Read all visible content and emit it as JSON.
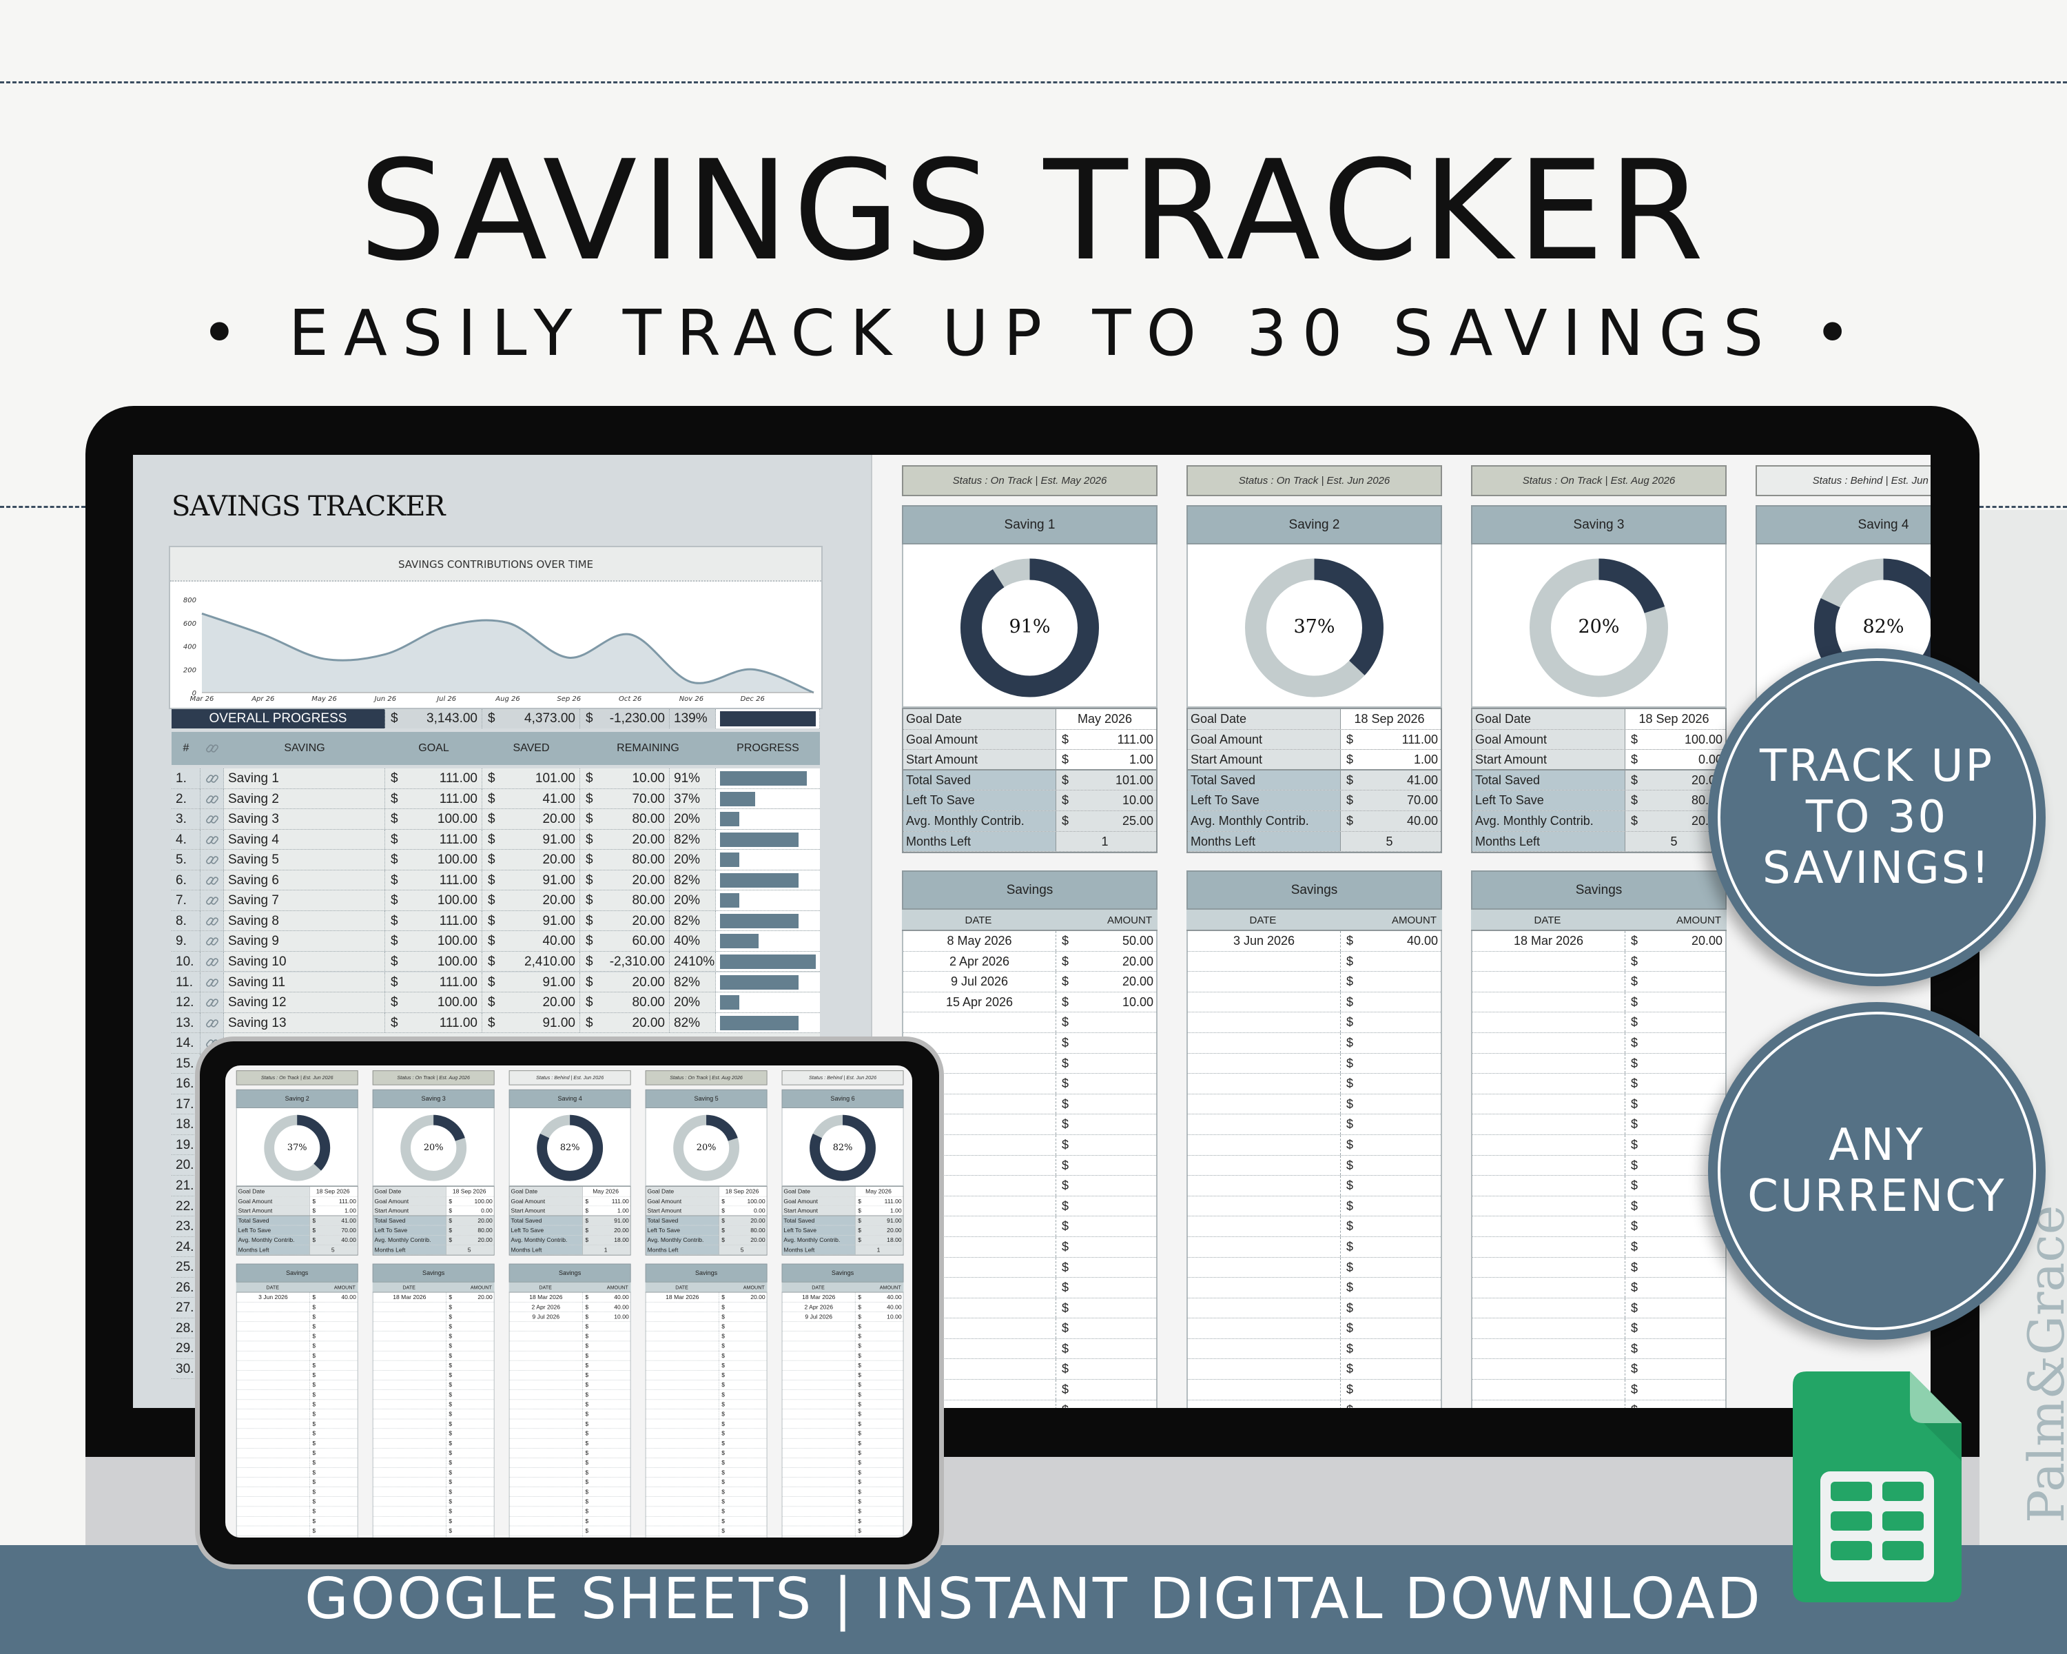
{
  "header": {
    "title": "SAVINGS TRACKER",
    "subtitle": "• EASILY TRACK UP TO 30 SAVINGS •"
  },
  "sheet": {
    "title": "SAVINGS TRACKER",
    "overall": {
      "label": "OVERALL PROGRESS",
      "currency": "$",
      "goal": "3,143.00",
      "saved": "4,373.00",
      "remaining": "-1,230.00",
      "percent": "139%",
      "progress": 1
    },
    "columns": {
      "num": "#",
      "saving": "SAVING",
      "goal": "GOAL",
      "saved": "SAVED",
      "remaining": "REMAINING",
      "progress": "PROGRESS"
    },
    "currency": "$",
    "rows": [
      {
        "num": "1.",
        "name": "Saving 1",
        "goal": "111.00",
        "saved": "101.00",
        "remaining": "10.00",
        "percent": "91%",
        "progress": 0.91
      },
      {
        "num": "2.",
        "name": "Saving 2",
        "goal": "111.00",
        "saved": "41.00",
        "remaining": "70.00",
        "percent": "37%",
        "progress": 0.37
      },
      {
        "num": "3.",
        "name": "Saving 3",
        "goal": "100.00",
        "saved": "20.00",
        "remaining": "80.00",
        "percent": "20%",
        "progress": 0.2
      },
      {
        "num": "4.",
        "name": "Saving 4",
        "goal": "111.00",
        "saved": "91.00",
        "remaining": "20.00",
        "percent": "82%",
        "progress": 0.82
      },
      {
        "num": "5.",
        "name": "Saving 5",
        "goal": "100.00",
        "saved": "20.00",
        "remaining": "80.00",
        "percent": "20%",
        "progress": 0.2
      },
      {
        "num": "6.",
        "name": "Saving 6",
        "goal": "111.00",
        "saved": "91.00",
        "remaining": "20.00",
        "percent": "82%",
        "progress": 0.82
      },
      {
        "num": "7.",
        "name": "Saving 7",
        "goal": "100.00",
        "saved": "20.00",
        "remaining": "80.00",
        "percent": "20%",
        "progress": 0.2
      },
      {
        "num": "8.",
        "name": "Saving 8",
        "goal": "111.00",
        "saved": "91.00",
        "remaining": "20.00",
        "percent": "82%",
        "progress": 0.82
      },
      {
        "num": "9.",
        "name": "Saving 9",
        "goal": "100.00",
        "saved": "40.00",
        "remaining": "60.00",
        "percent": "40%",
        "progress": 0.4
      },
      {
        "num": "10.",
        "name": "Saving 10",
        "goal": "100.00",
        "saved": "2,410.00",
        "remaining": "-2,310.00",
        "percent": "2410%",
        "progress": 1
      },
      {
        "num": "11.",
        "name": "Saving 11",
        "goal": "111.00",
        "saved": "91.00",
        "remaining": "20.00",
        "percent": "82%",
        "progress": 0.82
      },
      {
        "num": "12.",
        "name": "Saving 12",
        "goal": "100.00",
        "saved": "20.00",
        "remaining": "80.00",
        "percent": "20%",
        "progress": 0.2
      },
      {
        "num": "13.",
        "name": "Saving 13",
        "goal": "111.00",
        "saved": "91.00",
        "remaining": "20.00",
        "percent": "82%",
        "progress": 0.82
      }
    ],
    "empty_rows": [
      "14.",
      "15.",
      "16.",
      "17.",
      "18.",
      "19.",
      "20.",
      "21.",
      "22.",
      "23.",
      "24.",
      "25.",
      "26.",
      "27.",
      "28.",
      "29.",
      "30."
    ]
  },
  "chart_data": {
    "type": "area",
    "title": "SAVINGS CONTRIBUTIONS OVER TIME",
    "x": [
      "2026-03",
      "2026-04",
      "2026-05",
      "2026-06",
      "2026-07",
      "2026-08",
      "2026-09",
      "2026-10",
      "2026-11",
      "2026-12",
      "2027-01"
    ],
    "values": [
      680,
      500,
      290,
      330,
      570,
      600,
      300,
      500,
      90,
      200,
      0
    ],
    "x_tick_labels": [
      "Mar 26",
      "Apr 26",
      "May 26",
      "Jun 26",
      "Jul 26",
      "Aug 26",
      "Sep 26",
      "Oct 26",
      "Nov 26",
      "Dec 26"
    ],
    "y_ticks": [
      "0",
      "200",
      "400",
      "600",
      "800"
    ],
    "ylim": [
      0,
      800
    ],
    "smooth": true,
    "grid": false,
    "xlabel": "",
    "ylabel": "",
    "fill_color": "#d8e0e4",
    "line_color": "#7e98a6"
  },
  "card_labels": {
    "goal_date": "Goal Date",
    "goal_amount": "Goal Amount",
    "start_amount": "Start Amount",
    "total_saved": "Total Saved",
    "left_to_save": "Left To Save",
    "avg_monthly": "Avg. Monthly Contrib.",
    "months_left": "Months Left",
    "savings": "Savings",
    "date": "DATE",
    "amount": "AMOUNT",
    "currency": "$"
  },
  "cards": [
    {
      "status": "Status : On Track  |  Est. May 2026",
      "on_track": true,
      "name": "Saving 1",
      "percent": "91%",
      "progress": 0.91,
      "goal_date": "May 2026",
      "goal_amount": "111.00",
      "start_amount": "1.00",
      "total_saved": "101.00",
      "left_to_save": "10.00",
      "avg_monthly": "25.00",
      "months_left": "1",
      "entries": [
        {
          "date": "8 May 2026",
          "amount": "50.00"
        },
        {
          "date": "2 Apr 2026",
          "amount": "20.00"
        },
        {
          "date": "9 Jul 2026",
          "amount": "20.00"
        },
        {
          "date": "15 Apr 2026",
          "amount": "10.00"
        }
      ]
    },
    {
      "status": "Status : On Track  |  Est. Jun 2026",
      "on_track": true,
      "name": "Saving 2",
      "percent": "37%",
      "progress": 0.37,
      "goal_date": "18 Sep 2026",
      "goal_amount": "111.00",
      "start_amount": "1.00",
      "total_saved": "41.00",
      "left_to_save": "70.00",
      "avg_monthly": "40.00",
      "months_left": "5",
      "entries": [
        {
          "date": "3 Jun 2026",
          "amount": "40.00"
        }
      ]
    },
    {
      "status": "Status : On Track  |  Est. Aug 2026",
      "on_track": true,
      "name": "Saving 3",
      "percent": "20%",
      "progress": 0.2,
      "goal_date": "18 Sep 2026",
      "goal_amount": "100.00",
      "start_amount": "0.00",
      "total_saved": "20.00",
      "left_to_save": "80.00",
      "avg_monthly": "20.00",
      "months_left": "5",
      "entries": [
        {
          "date": "18 Mar 2026",
          "amount": "20.00"
        }
      ]
    },
    {
      "status": "Status : Behind  |  Est. Jun 2026",
      "on_track": false,
      "name": "Saving 4",
      "percent": "82%",
      "progress": 0.82,
      "goal_date": "May 2026",
      "goal_amount": "111.00",
      "start_amount": "1.00",
      "total_saved": "91.00",
      "left_to_save": "20.00",
      "avg_monthly": "18.00",
      "months_left": "1",
      "entries": [
        {
          "date": "18 Mar 2026",
          "amount": "40.00"
        },
        {
          "date": "2 Apr 2026",
          "amount": "40.00"
        },
        {
          "date": "9 Jul 2026",
          "amount": "10.00"
        }
      ]
    },
    {
      "status": "Status : On Track  |  Est. Aug 2026",
      "on_track": true,
      "name": "Saving 5",
      "percent": "20%",
      "progress": 0.2,
      "goal_date": "18 Sep 2026",
      "goal_amount": "100.00",
      "start_amount": "0.00",
      "total_saved": "20.00",
      "left_to_save": "80.00",
      "avg_monthly": "20.00",
      "months_left": "5",
      "entries": [
        {
          "date": "18 Mar 2026",
          "amount": "20.00"
        }
      ]
    },
    {
      "status": "Status : Behind  |  Est. Jun 2026",
      "on_track": false,
      "name": "Saving 6",
      "percent": "82%",
      "progress": 0.82,
      "goal_date": "May 2026",
      "goal_amount": "111.00",
      "start_amount": "1.00",
      "total_saved": "91.00",
      "left_to_save": "20.00",
      "avg_monthly": "18.00",
      "months_left": "1",
      "entries": [
        {
          "date": "18 Mar 2026",
          "amount": "40.00"
        },
        {
          "date": "2 Apr 2026",
          "amount": "40.00"
        },
        {
          "date": "9 Jul 2026",
          "amount": "10.00"
        }
      ]
    }
  ],
  "badges": {
    "track": "TRACK UP\nTO 30\nSAVINGS!",
    "currency": "ANY\nCURRENCY"
  },
  "footer": "GOOGLE SHEETS | INSTANT DIGITAL DOWNLOAD",
  "brand": "Palm&Grace",
  "colors": {
    "navy": "#2b3a4f",
    "slate": "#557185",
    "header_blue": "#a0b3ba",
    "progress_bar": "#647f8f",
    "donut_track": "#c3cccd",
    "on_track": "#cbcfc5",
    "behind": "#eaeceb",
    "sheets_green": "#23a566"
  }
}
